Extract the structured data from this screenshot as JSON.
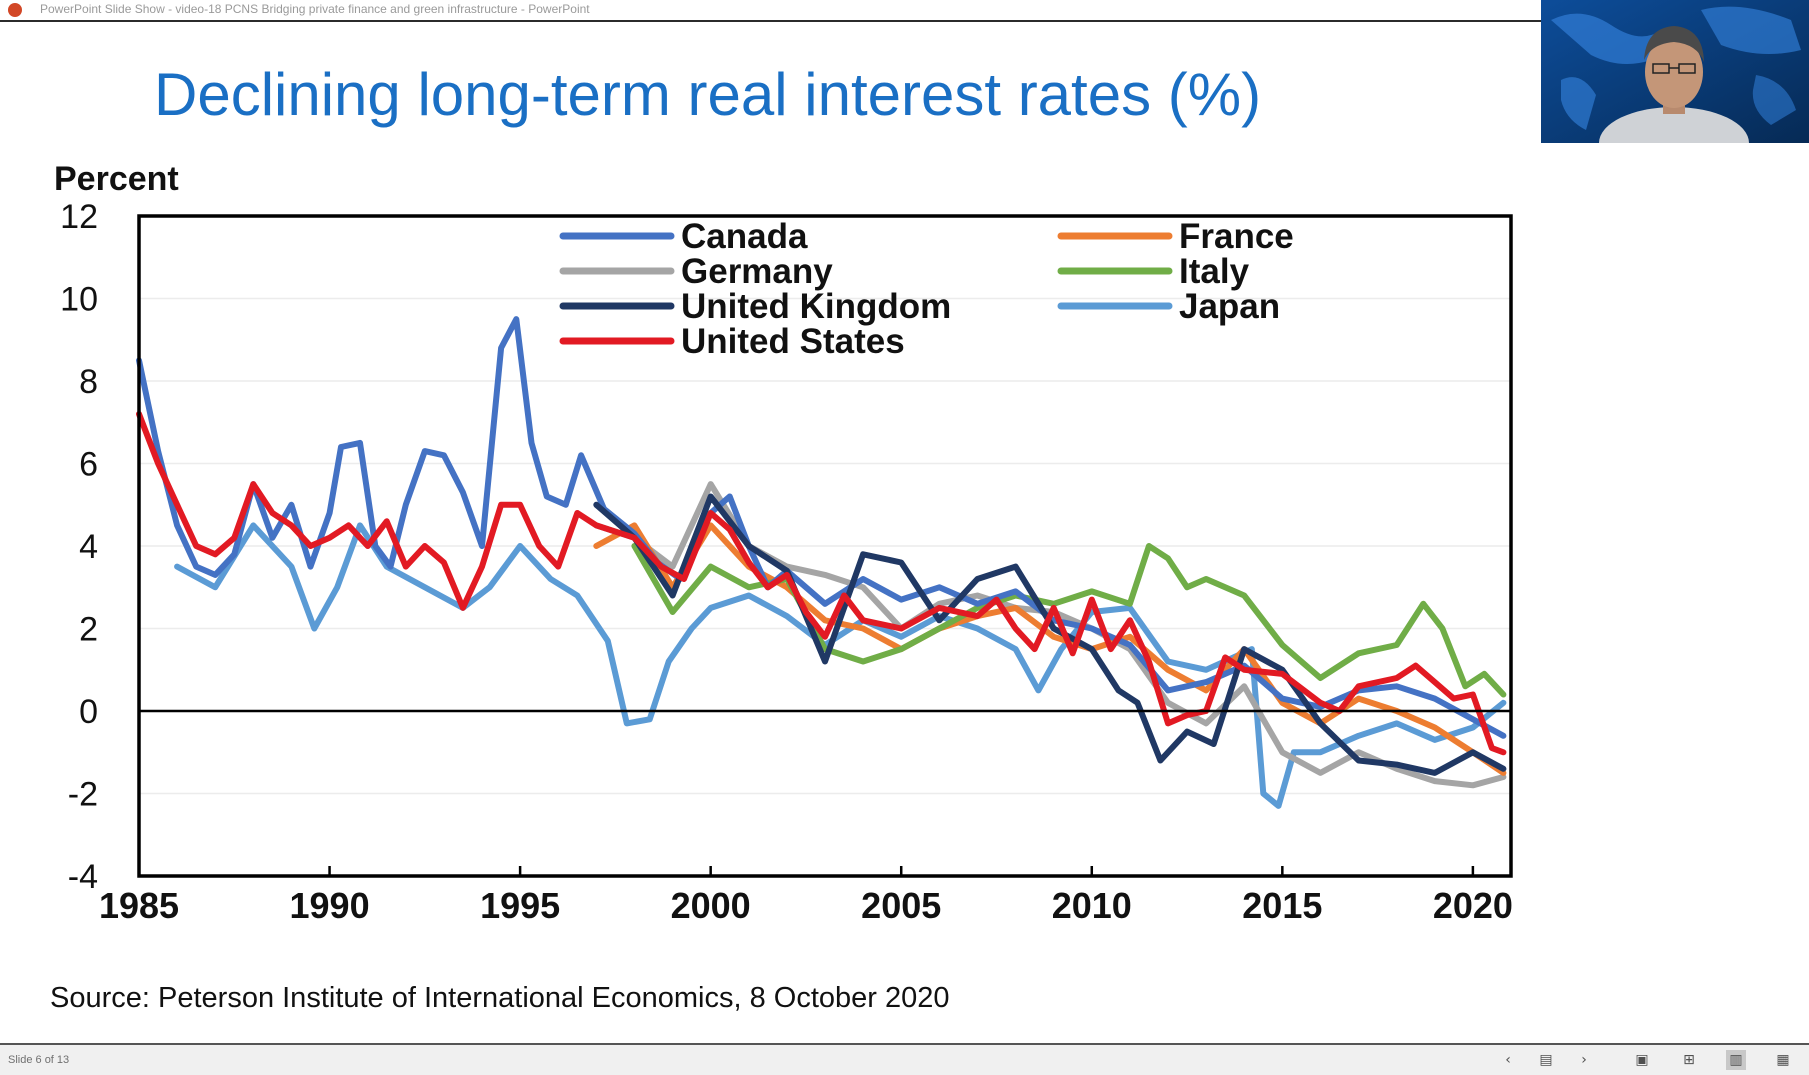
{
  "window": {
    "title": "PowerPoint Slide Show  -  video-18 PCNS Bridging private finance and green infrastructure - PowerPoint"
  },
  "slide": {
    "title": "Declining long-term real interest rates (%)",
    "source": "Source: Peterson Institute of International Economics, 8 October 2020"
  },
  "status": {
    "slide_counter": "Slide 6 of 13",
    "icons": [
      "prev-icon",
      "slide-sorter-icon",
      "next-icon",
      "notes-icon",
      "grid-view-icon",
      "reading-view-icon",
      "slideshow-icon"
    ]
  },
  "chart_data": {
    "type": "line",
    "ylabel": "Percent",
    "xlim": [
      1985,
      2021
    ],
    "ylim": [
      -4,
      12
    ],
    "x_ticks": [
      "1985",
      "1990",
      "1995",
      "2000",
      "2005",
      "2010",
      "2015",
      "2020"
    ],
    "y_ticks": [
      "12",
      "10",
      "8",
      "6",
      "4",
      "2",
      "0",
      "-2",
      "-4"
    ],
    "grid": "horizontal light",
    "legend_position": "top",
    "series": [
      {
        "name": "Canada",
        "color": "#4472c4",
        "points": [
          [
            1985,
            8.5
          ],
          [
            1985.5,
            6.3
          ],
          [
            1986,
            4.5
          ],
          [
            1986.5,
            3.5
          ],
          [
            1987,
            3.3
          ],
          [
            1987.5,
            3.8
          ],
          [
            1988,
            5.5
          ],
          [
            1988.5,
            4.2
          ],
          [
            1989,
            5.0
          ],
          [
            1989.5,
            3.5
          ],
          [
            1990,
            4.8
          ],
          [
            1990.3,
            6.4
          ],
          [
            1990.8,
            6.5
          ],
          [
            1991.2,
            4.0
          ],
          [
            1991.6,
            3.5
          ],
          [
            1992,
            5.0
          ],
          [
            1992.5,
            6.3
          ],
          [
            1993,
            6.2
          ],
          [
            1993.5,
            5.3
          ],
          [
            1994,
            4.0
          ],
          [
            1994.5,
            8.8
          ],
          [
            1994.9,
            9.5
          ],
          [
            1995.3,
            6.5
          ],
          [
            1995.7,
            5.2
          ],
          [
            1996.2,
            5.0
          ],
          [
            1996.6,
            6.2
          ],
          [
            1997.2,
            4.9
          ],
          [
            1998,
            4.3
          ],
          [
            1998.6,
            3.6
          ],
          [
            1999.2,
            3.2
          ],
          [
            2000,
            4.8
          ],
          [
            2000.5,
            5.2
          ],
          [
            2001,
            4.0
          ],
          [
            2001.5,
            3.0
          ],
          [
            2002,
            3.4
          ],
          [
            2003,
            2.6
          ],
          [
            2004,
            3.2
          ],
          [
            2005,
            2.7
          ],
          [
            2006,
            3.0
          ],
          [
            2007,
            2.6
          ],
          [
            2008,
            2.9
          ],
          [
            2009,
            2.2
          ],
          [
            2010,
            2.0
          ],
          [
            2011,
            1.6
          ],
          [
            2012,
            0.5
          ],
          [
            2013,
            0.7
          ],
          [
            2014,
            1.1
          ],
          [
            2015,
            0.3
          ],
          [
            2016,
            0.1
          ],
          [
            2017,
            0.5
          ],
          [
            2018,
            0.6
          ],
          [
            2019,
            0.3
          ],
          [
            2020,
            -0.2
          ],
          [
            2020.8,
            -0.6
          ]
        ]
      },
      {
        "name": "France",
        "color": "#ed7d31",
        "points": [
          [
            1997,
            4.0
          ],
          [
            1998,
            4.5
          ],
          [
            1999,
            3.0
          ],
          [
            2000,
            4.5
          ],
          [
            2001,
            3.5
          ],
          [
            2002,
            3.0
          ],
          [
            2003,
            2.2
          ],
          [
            2004,
            2.0
          ],
          [
            2005,
            1.5
          ],
          [
            2006,
            2.0
          ],
          [
            2007,
            2.3
          ],
          [
            2008,
            2.5
          ],
          [
            2009,
            1.8
          ],
          [
            2010,
            1.5
          ],
          [
            2011,
            1.8
          ],
          [
            2012,
            1.0
          ],
          [
            2013,
            0.5
          ],
          [
            2014,
            1.5
          ],
          [
            2015,
            0.2
          ],
          [
            2016,
            -0.3
          ],
          [
            2017,
            0.3
          ],
          [
            2018,
            0.0
          ],
          [
            2019,
            -0.4
          ],
          [
            2020,
            -1.0
          ],
          [
            2020.8,
            -1.5
          ]
        ]
      },
      {
        "name": "Germany",
        "color": "#a5a5a5",
        "points": [
          [
            1997,
            4.5
          ],
          [
            1998,
            4.2
          ],
          [
            1999,
            3.5
          ],
          [
            2000,
            5.5
          ],
          [
            2001,
            4.0
          ],
          [
            2002,
            3.5
          ],
          [
            2003,
            3.3
          ],
          [
            2004,
            3.0
          ],
          [
            2005,
            2.0
          ],
          [
            2006,
            2.6
          ],
          [
            2007,
            2.8
          ],
          [
            2008,
            2.5
          ],
          [
            2009,
            2.4
          ],
          [
            2010,
            2.0
          ],
          [
            2011,
            1.5
          ],
          [
            2012,
            0.2
          ],
          [
            2013,
            -0.3
          ],
          [
            2014,
            0.6
          ],
          [
            2015,
            -1.0
          ],
          [
            2016,
            -1.5
          ],
          [
            2017,
            -1.0
          ],
          [
            2018,
            -1.4
          ],
          [
            2019,
            -1.7
          ],
          [
            2020,
            -1.8
          ],
          [
            2020.8,
            -1.6
          ]
        ]
      },
      {
        "name": "Italy",
        "color": "#70ad47",
        "points": [
          [
            1998,
            4.0
          ],
          [
            1999,
            2.4
          ],
          [
            2000,
            3.5
          ],
          [
            2001,
            3.0
          ],
          [
            2002,
            3.2
          ],
          [
            2003,
            1.5
          ],
          [
            2004,
            1.2
          ],
          [
            2005,
            1.5
          ],
          [
            2006,
            2.0
          ],
          [
            2007,
            2.5
          ],
          [
            2008,
            2.8
          ],
          [
            2009,
            2.6
          ],
          [
            2010,
            2.9
          ],
          [
            2011,
            2.6
          ],
          [
            2011.5,
            4.0
          ],
          [
            2012,
            3.7
          ],
          [
            2012.5,
            3.0
          ],
          [
            2013,
            3.2
          ],
          [
            2014,
            2.8
          ],
          [
            2015,
            1.6
          ],
          [
            2016,
            0.8
          ],
          [
            2017,
            1.4
          ],
          [
            2018,
            1.6
          ],
          [
            2018.7,
            2.6
          ],
          [
            2019.2,
            2.0
          ],
          [
            2019.8,
            0.6
          ],
          [
            2020.3,
            0.9
          ],
          [
            2020.8,
            0.4
          ]
        ]
      },
      {
        "name": "Japan",
        "color": "#5b9bd5",
        "points": [
          [
            1986,
            3.5
          ],
          [
            1987,
            3.0
          ],
          [
            1988,
            4.5
          ],
          [
            1989,
            3.5
          ],
          [
            1989.6,
            2.0
          ],
          [
            1990.2,
            3.0
          ],
          [
            1990.8,
            4.5
          ],
          [
            1991.5,
            3.5
          ],
          [
            1992.5,
            3.0
          ],
          [
            1993.5,
            2.5
          ],
          [
            1994.2,
            3.0
          ],
          [
            1995,
            4.0
          ],
          [
            1995.8,
            3.2
          ],
          [
            1996.5,
            2.8
          ],
          [
            1997.3,
            1.7
          ],
          [
            1997.8,
            -0.3
          ],
          [
            1998.4,
            -0.2
          ],
          [
            1998.9,
            1.2
          ],
          [
            1999.5,
            2.0
          ],
          [
            2000,
            2.5
          ],
          [
            2001,
            2.8
          ],
          [
            2002,
            2.3
          ],
          [
            2003,
            1.6
          ],
          [
            2004,
            2.2
          ],
          [
            2005,
            1.8
          ],
          [
            2006,
            2.3
          ],
          [
            2007,
            2.0
          ],
          [
            2008,
            1.5
          ],
          [
            2008.6,
            0.5
          ],
          [
            2009.2,
            1.5
          ],
          [
            2010,
            2.4
          ],
          [
            2011,
            2.5
          ],
          [
            2012,
            1.2
          ],
          [
            2013,
            1.0
          ],
          [
            2014.2,
            1.5
          ],
          [
            2014.5,
            -2.0
          ],
          [
            2014.9,
            -2.3
          ],
          [
            2015.3,
            -1.0
          ],
          [
            2016,
            -1.0
          ],
          [
            2017,
            -0.6
          ],
          [
            2018,
            -0.3
          ],
          [
            2019,
            -0.7
          ],
          [
            2020,
            -0.4
          ],
          [
            2020.8,
            0.2
          ]
        ]
      },
      {
        "name": "United Kingdom",
        "color": "#203864",
        "points": [
          [
            1997,
            5.0
          ],
          [
            1998,
            4.2
          ],
          [
            1999,
            2.8
          ],
          [
            2000,
            5.2
          ],
          [
            2001,
            4.0
          ],
          [
            2002,
            3.4
          ],
          [
            2003,
            1.2
          ],
          [
            2004,
            3.8
          ],
          [
            2005,
            3.6
          ],
          [
            2006,
            2.2
          ],
          [
            2007,
            3.2
          ],
          [
            2008,
            3.5
          ],
          [
            2009,
            2.0
          ],
          [
            2010,
            1.5
          ],
          [
            2010.7,
            0.5
          ],
          [
            2011.2,
            0.2
          ],
          [
            2011.8,
            -1.2
          ],
          [
            2012.5,
            -0.5
          ],
          [
            2013.2,
            -0.8
          ],
          [
            2014,
            1.5
          ],
          [
            2015,
            1.0
          ],
          [
            2016,
            -0.3
          ],
          [
            2017,
            -1.2
          ],
          [
            2018,
            -1.3
          ],
          [
            2019,
            -1.5
          ],
          [
            2020,
            -1.0
          ],
          [
            2020.8,
            -1.4
          ]
        ]
      },
      {
        "name": "United States",
        "color": "#e21a23",
        "points": [
          [
            1985,
            7.2
          ],
          [
            1985.5,
            6.0
          ],
          [
            1986,
            5.0
          ],
          [
            1986.5,
            4.0
          ],
          [
            1987,
            3.8
          ],
          [
            1987.5,
            4.2
          ],
          [
            1988,
            5.5
          ],
          [
            1988.5,
            4.8
          ],
          [
            1989,
            4.5
          ],
          [
            1989.5,
            4.0
          ],
          [
            1990,
            4.2
          ],
          [
            1990.5,
            4.5
          ],
          [
            1991,
            4.0
          ],
          [
            1991.5,
            4.6
          ],
          [
            1992,
            3.5
          ],
          [
            1992.5,
            4.0
          ],
          [
            1993,
            3.6
          ],
          [
            1993.5,
            2.5
          ],
          [
            1994,
            3.5
          ],
          [
            1994.5,
            5.0
          ],
          [
            1995,
            5.0
          ],
          [
            1995.5,
            4.0
          ],
          [
            1996,
            3.5
          ],
          [
            1996.5,
            4.8
          ],
          [
            1997,
            4.5
          ],
          [
            1998,
            4.2
          ],
          [
            1998.7,
            3.5
          ],
          [
            1999.3,
            3.2
          ],
          [
            2000,
            4.8
          ],
          [
            2000.5,
            4.4
          ],
          [
            2001,
            3.6
          ],
          [
            2001.5,
            3.0
          ],
          [
            2002,
            3.3
          ],
          [
            2002.5,
            2.4
          ],
          [
            2003,
            1.8
          ],
          [
            2003.5,
            2.8
          ],
          [
            2004,
            2.2
          ],
          [
            2005,
            2.0
          ],
          [
            2006,
            2.5
          ],
          [
            2007,
            2.3
          ],
          [
            2007.5,
            2.7
          ],
          [
            2008,
            2.0
          ],
          [
            2008.5,
            1.5
          ],
          [
            2009,
            2.5
          ],
          [
            2009.5,
            1.4
          ],
          [
            2010,
            2.7
          ],
          [
            2010.5,
            1.5
          ],
          [
            2011,
            2.2
          ],
          [
            2011.5,
            1.2
          ],
          [
            2012,
            -0.3
          ],
          [
            2012.5,
            -0.1
          ],
          [
            2013,
            0.0
          ],
          [
            2013.5,
            1.3
          ],
          [
            2014,
            1.0
          ],
          [
            2015,
            0.9
          ],
          [
            2016,
            0.2
          ],
          [
            2016.5,
            0.0
          ],
          [
            2017,
            0.6
          ],
          [
            2018,
            0.8
          ],
          [
            2018.5,
            1.1
          ],
          [
            2019,
            0.7
          ],
          [
            2019.5,
            0.3
          ],
          [
            2020,
            0.4
          ],
          [
            2020.5,
            -0.9
          ],
          [
            2020.8,
            -1.0
          ]
        ]
      }
    ]
  }
}
